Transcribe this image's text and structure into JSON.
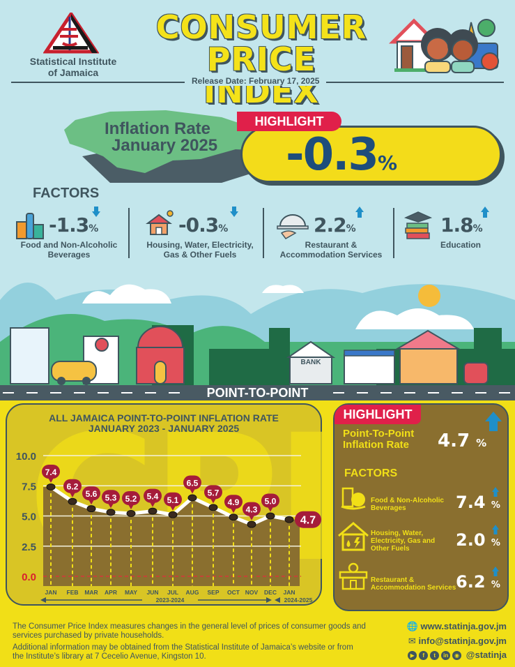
{
  "header": {
    "org_line1": "Statistical Institute",
    "org_line2": "of Jamaica",
    "title_line1": "CONSUMER",
    "title_line2": "PRICE INDEX",
    "release_date": "Release Date: February 17, 2025"
  },
  "highlight": {
    "tag": "HIGHLIGHT",
    "label_line1": "Inflation Rate",
    "label_line2": "January 2025",
    "value": "-0.3",
    "unit": "%"
  },
  "factors": {
    "heading": "FACTORS",
    "items": [
      {
        "value": "-1.3",
        "unit": "%",
        "direction": "down",
        "label_line1": "Food and Non-Alcoholic",
        "label_line2": "Beverages",
        "icon": "groceries-icon"
      },
      {
        "value": "-0.3",
        "unit": "%",
        "direction": "down",
        "label_line1": "Housing, Water, Electricity,",
        "label_line2": "Gas & Other Fuels",
        "icon": "house-icon"
      },
      {
        "value": "2.2",
        "unit": "%",
        "direction": "up",
        "label_line1": "Restaurant &",
        "label_line2": "Accommodation Services",
        "icon": "cloche-icon"
      },
      {
        "value": "1.8",
        "unit": "%",
        "direction": "up",
        "label_line1": "Education",
        "label_line2": "",
        "icon": "books-icon"
      }
    ]
  },
  "scene": {
    "bank_sign": "BANK",
    "road_title": "POINT-TO-POINT"
  },
  "chart": {
    "bg_text": "CPI",
    "title_line1": "ALL JAMAICA POINT-TO-POINT INFLATION RATE",
    "title_line2": "JANUARY 2023 - JANUARY 2025",
    "period1": "2023-2024",
    "period2": "2024-2025"
  },
  "chart_data": {
    "type": "line",
    "title": "ALL JAMAICA POINT-TO-POINT INFLATION RATE JANUARY 2023 - JANUARY 2025",
    "categories": [
      "JAN",
      "FEB",
      "MAR",
      "APR",
      "MAY",
      "JUN",
      "JUL",
      "AUG",
      "SEP",
      "OCT",
      "NOV",
      "DEC",
      "JAN"
    ],
    "series": [
      {
        "name": "Point-to-point inflation rate (%)",
        "values": [
          7.4,
          6.2,
          5.6,
          5.3,
          5.2,
          5.4,
          5.1,
          6.5,
          5.7,
          4.9,
          4.3,
          5.0,
          4.7
        ]
      }
    ],
    "y_ticks": [
      "10.0",
      "7.5",
      "5.0",
      "2.5",
      "0.0"
    ],
    "ylim": [
      0,
      10
    ],
    "x_groups": [
      {
        "label": "2023-2024",
        "from": "JAN",
        "to": "DEC"
      },
      {
        "label": "2024-2025",
        "from": "JAN",
        "to": "JAN"
      }
    ],
    "xlabel": "",
    "ylabel": "",
    "grid": true,
    "legend": "none"
  },
  "p2p": {
    "tag": "HIGHLIGHT",
    "label_line1": "Point-To-Point",
    "label_line2": "Inflation Rate",
    "value": "4.7",
    "unit": "%",
    "direction": "up",
    "factors_heading": "FACTORS",
    "items": [
      {
        "label_line1": "Food & Non-Alcoholic",
        "label_line2": "Beverages",
        "label_line3": "",
        "value": "7.4",
        "unit": "%",
        "direction": "up"
      },
      {
        "label_line1": "Housing, Water,",
        "label_line2": "Electricity, Gas and",
        "label_line3": "Other Fuels",
        "value": "2.0",
        "unit": "%",
        "direction": "up"
      },
      {
        "label_line1": "Restaurant &",
        "label_line2": "Accommodation Services",
        "label_line3": "",
        "value": "6.2",
        "unit": "%",
        "direction": "up"
      }
    ]
  },
  "footer": {
    "para1_line1": "The Consumer Price Index measures changes in the general level of prices of consumer goods and",
    "para1_line2": "services purchased by private households.",
    "para2_line1": "Additional information may be obtained from the Statistical Institute of Jamaica’s website or from",
    "para2_line2": "the Institute’s library at 7 Cecelio Avenue, Kingston 10.",
    "website": "www.statinja.gov.jm",
    "email": "info@statinja.gov.jm",
    "social_handle": "@statinja"
  },
  "colors": {
    "sky": "#c3e6ec",
    "slate": "#3f555e",
    "yellow": "#f1df17",
    "red": "#e0204a",
    "navy": "#1e4d7b",
    "olive_brown": "#8a6f2f",
    "marker_red": "#a51c3a",
    "arrow_blue": "#1f8fc8",
    "green_map": "#6cbf84"
  }
}
